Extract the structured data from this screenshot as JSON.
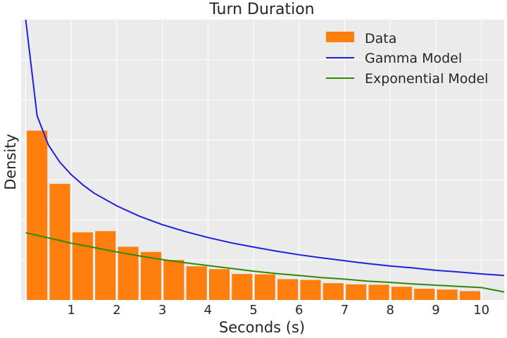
{
  "chart_data": {
    "type": "bar",
    "title": "Turn Duration",
    "xlabel": "Seconds (s)",
    "ylabel": "Density",
    "xlim": [
      -0.1,
      10.5
    ],
    "ylim": [
      0,
      0.7
    ],
    "x_ticks": [
      1,
      2,
      3,
      4,
      5,
      6,
      7,
      8,
      9,
      10
    ],
    "grid": true,
    "legend_position": "top-right",
    "bar_width": 0.45,
    "colors": {
      "data": "#ff7f0e",
      "gamma": "#1f1fe0",
      "exponential": "#2e8b00",
      "background": "#ebebeb",
      "grid": "#ffffff"
    },
    "series": [
      {
        "name": "Data",
        "type": "bar",
        "x": [
          0.25,
          0.75,
          1.25,
          1.75,
          2.25,
          2.75,
          3.25,
          3.75,
          4.25,
          4.75,
          5.25,
          5.75,
          6.25,
          6.75,
          7.25,
          7.75,
          8.25,
          8.75,
          9.25,
          9.75
        ],
        "values": [
          0.423,
          0.29,
          0.169,
          0.172,
          0.133,
          0.12,
          0.1,
          0.084,
          0.077,
          0.065,
          0.064,
          0.052,
          0.05,
          0.042,
          0.039,
          0.038,
          0.033,
          0.028,
          0.026,
          0.022
        ]
      },
      {
        "name": "Gamma Model",
        "type": "line",
        "x": [
          0,
          0.25,
          0.5,
          0.75,
          1,
          1.25,
          1.5,
          2,
          2.5,
          3,
          3.5,
          4,
          4.5,
          5,
          5.5,
          6,
          6.5,
          7,
          7.5,
          8,
          8.5,
          9,
          9.5,
          10,
          10.5
        ],
        "values": [
          0.7,
          0.46,
          0.387,
          0.344,
          0.313,
          0.288,
          0.267,
          0.235,
          0.209,
          0.188,
          0.171,
          0.156,
          0.143,
          0.132,
          0.122,
          0.113,
          0.105,
          0.098,
          0.091,
          0.085,
          0.08,
          0.074,
          0.07,
          0.065,
          0.061
        ]
      },
      {
        "name": "Exponential Model",
        "type": "line",
        "x": [
          0,
          0.5,
          1,
          1.5,
          2,
          2.5,
          3,
          3.5,
          4,
          4.5,
          5,
          5.5,
          6,
          6.5,
          7,
          7.5,
          8,
          8.5,
          9,
          9.5,
          10,
          10.5
        ],
        "values": [
          0.168,
          0.155,
          0.142,
          0.131,
          0.12,
          0.11,
          0.101,
          0.093,
          0.086,
          0.079,
          0.072,
          0.066,
          0.061,
          0.056,
          0.052,
          0.047,
          0.044,
          0.04,
          0.037,
          0.034,
          0.031,
          0.02
        ]
      }
    ]
  }
}
